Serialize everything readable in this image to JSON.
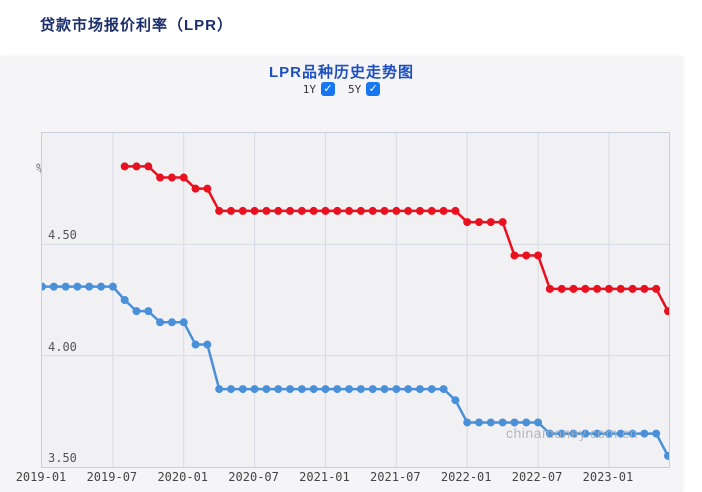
{
  "page": {
    "title": "贷款市场报价利率（LPR）"
  },
  "chart": {
    "title": "LPR品种历史走势图",
    "unit": "%",
    "date_range": "2019-01 - 2023-06",
    "watermark": "chinamoney.com.cn",
    "toggles": [
      {
        "label": "1Y",
        "checked": true
      },
      {
        "label": "5Y",
        "checked": true
      }
    ],
    "legend": [
      {
        "label": "1Y",
        "value": "3.55",
        "swatch_color": "#93bbe4"
      },
      {
        "label": "5Y",
        "value": "4.20",
        "swatch_color": "#f28080"
      }
    ],
    "check_glyph": "✓"
  },
  "colors": {
    "series_1y": "#4a90d9",
    "series_5y": "#e9111f",
    "legend_1y_swatch": "#93bbe4",
    "legend_5y_swatch": "#f28080",
    "checkbox_blue": "#1677f0",
    "grid": "#d7dbe4",
    "plot_border": "#c9cfda",
    "plot_bg": "#f1f1f4",
    "panel_bg": "#f5f5f7",
    "page_title": "#1b2d6b",
    "chart_title": "#1d4fc0",
    "watermark": "#a9aeb6"
  },
  "chart_data": {
    "type": "line",
    "title": "LPR品种历史走势图",
    "ylabel": "%",
    "ylim": [
      3.5,
      5.0
    ],
    "grid": true,
    "x_months_total": 54,
    "x_start": "2019-01",
    "x_end": "2023-06",
    "x_ticks": [
      {
        "month": 0,
        "label": "2019-01"
      },
      {
        "month": 6,
        "label": "2019-07"
      },
      {
        "month": 12,
        "label": "2020-01"
      },
      {
        "month": 18,
        "label": "2020-07"
      },
      {
        "month": 24,
        "label": "2021-01"
      },
      {
        "month": 30,
        "label": "2021-07"
      },
      {
        "month": 36,
        "label": "2022-01"
      },
      {
        "month": 42,
        "label": "2022-07"
      },
      {
        "month": 48,
        "label": "2023-01"
      }
    ],
    "y_ticks": [
      {
        "value": 4.5,
        "label": "4.50"
      },
      {
        "value": 4.0,
        "label": "4.00"
      },
      {
        "value": 3.5,
        "label": "3.50"
      }
    ],
    "grid_color": "#d7dbe4",
    "series": [
      {
        "name": "1Y",
        "color": "#4a90d9",
        "start_month": "2019-01",
        "start_month_index": 0,
        "latest_value": 3.55,
        "values": [
          4.31,
          4.31,
          4.31,
          4.31,
          4.31,
          4.31,
          4.31,
          4.25,
          4.2,
          4.2,
          4.15,
          4.15,
          4.15,
          4.05,
          4.05,
          3.85,
          3.85,
          3.85,
          3.85,
          3.85,
          3.85,
          3.85,
          3.85,
          3.85,
          3.85,
          3.85,
          3.85,
          3.85,
          3.85,
          3.85,
          3.85,
          3.85,
          3.85,
          3.85,
          3.85,
          3.8,
          3.7,
          3.7,
          3.7,
          3.7,
          3.7,
          3.7,
          3.7,
          3.65,
          3.65,
          3.65,
          3.65,
          3.65,
          3.65,
          3.65,
          3.65,
          3.65,
          3.65,
          3.55
        ]
      },
      {
        "name": "5Y",
        "color": "#e9111f",
        "start_month": "2019-08",
        "start_month_index": 7,
        "latest_value": 4.2,
        "values": [
          4.85,
          4.85,
          4.85,
          4.8,
          4.8,
          4.8,
          4.75,
          4.75,
          4.65,
          4.65,
          4.65,
          4.65,
          4.65,
          4.65,
          4.65,
          4.65,
          4.65,
          4.65,
          4.65,
          4.65,
          4.65,
          4.65,
          4.65,
          4.65,
          4.65,
          4.65,
          4.65,
          4.65,
          4.65,
          4.6,
          4.6,
          4.6,
          4.6,
          4.45,
          4.45,
          4.45,
          4.3,
          4.3,
          4.3,
          4.3,
          4.3,
          4.3,
          4.3,
          4.3,
          4.3,
          4.3,
          4.2
        ]
      }
    ]
  }
}
